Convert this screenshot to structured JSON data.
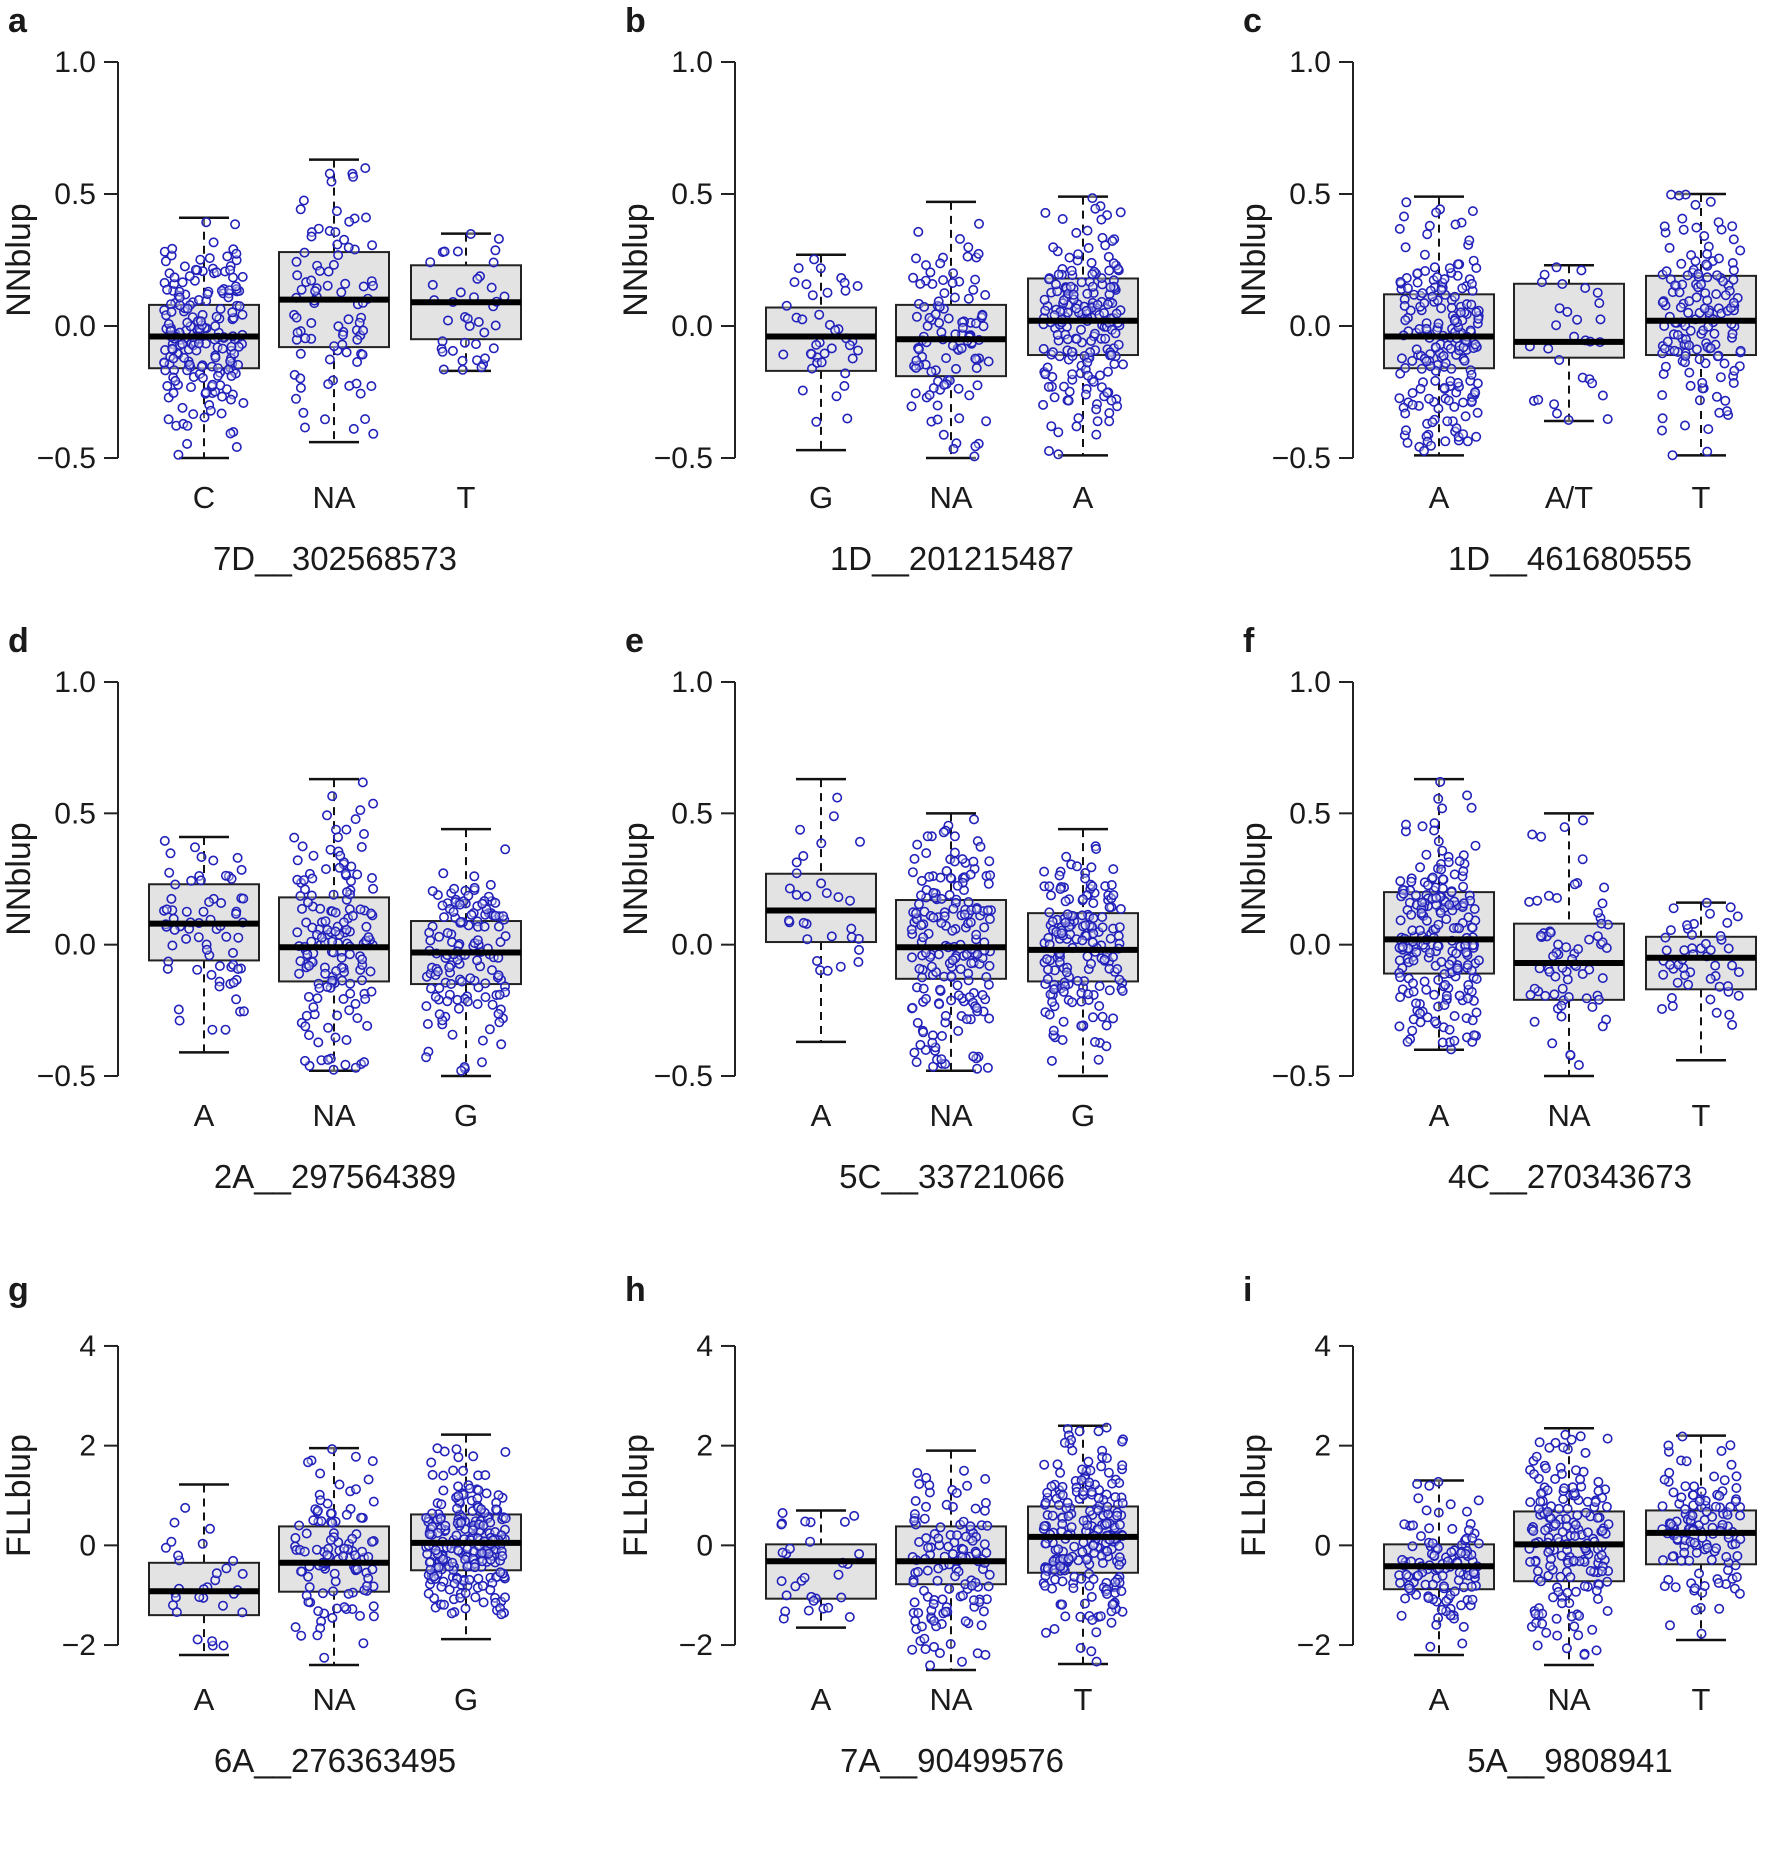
{
  "figure": {
    "title": ""
  },
  "chart_data": [
    {
      "panel": "a",
      "type": "box",
      "ylabel": "NNblup",
      "xlabel": "7D__302568573",
      "ylim": [
        -0.5,
        1.0
      ],
      "yticks": [
        -0.5,
        0.0,
        0.5,
        1.0
      ],
      "ytick_labels": [
        "−0.5",
        "0.0",
        "0.5",
        "1.0"
      ],
      "categories": [
        "C",
        "NA",
        "T"
      ],
      "boxes": [
        {
          "q1": -0.16,
          "median": -0.04,
          "q3": 0.08,
          "whisker_low": -0.5,
          "whisker_high": 0.41,
          "n": 200
        },
        {
          "q1": -0.08,
          "median": 0.1,
          "q3": 0.28,
          "whisker_low": -0.44,
          "whisker_high": 0.63,
          "n": 90
        },
        {
          "q1": -0.05,
          "median": 0.09,
          "q3": 0.23,
          "whisker_low": -0.17,
          "whisker_high": 0.35,
          "n": 40
        }
      ],
      "point_color": "#2222bb"
    },
    {
      "panel": "b",
      "type": "box",
      "ylabel": "NNblup",
      "xlabel": "1D__201215487",
      "ylim": [
        -0.5,
        1.0
      ],
      "yticks": [
        -0.5,
        0.0,
        0.5,
        1.0
      ],
      "ytick_labels": [
        "−0.5",
        "0.0",
        "0.5",
        "1.0"
      ],
      "categories": [
        "G",
        "NA",
        "A"
      ],
      "boxes": [
        {
          "q1": -0.17,
          "median": -0.04,
          "q3": 0.07,
          "whisker_low": -0.47,
          "whisker_high": 0.27,
          "n": 40
        },
        {
          "q1": -0.19,
          "median": -0.05,
          "q3": 0.08,
          "whisker_low": -0.5,
          "whisker_high": 0.47,
          "n": 110
        },
        {
          "q1": -0.11,
          "median": 0.02,
          "q3": 0.18,
          "whisker_low": -0.49,
          "whisker_high": 0.49,
          "n": 200
        }
      ],
      "point_color": "#2222bb"
    },
    {
      "panel": "c",
      "type": "box",
      "ylabel": "NNblup",
      "xlabel": "1D__461680555",
      "ylim": [
        -0.5,
        1.0
      ],
      "yticks": [
        -0.5,
        0.0,
        0.5,
        1.0
      ],
      "ytick_labels": [
        "−0.5",
        "0.0",
        "0.5",
        "1.0"
      ],
      "categories": [
        "A",
        "A/T",
        "T"
      ],
      "boxes": [
        {
          "q1": -0.16,
          "median": -0.04,
          "q3": 0.12,
          "whisker_low": -0.49,
          "whisker_high": 0.49,
          "n": 200
        },
        {
          "q1": -0.12,
          "median": -0.06,
          "q3": 0.16,
          "whisker_low": -0.36,
          "whisker_high": 0.23,
          "n": 30
        },
        {
          "q1": -0.11,
          "median": 0.02,
          "q3": 0.19,
          "whisker_low": -0.49,
          "whisker_high": 0.5,
          "n": 150
        }
      ],
      "point_color": "#2222bb"
    },
    {
      "panel": "d",
      "type": "box",
      "ylabel": "NNblup",
      "xlabel": "2A__297564389",
      "ylim": [
        -0.5,
        1.0
      ],
      "yticks": [
        -0.5,
        0.0,
        0.5,
        1.0
      ],
      "ytick_labels": [
        "−0.5",
        "0.0",
        "0.5",
        "1.0"
      ],
      "categories": [
        "A",
        "NA",
        "G"
      ],
      "boxes": [
        {
          "q1": -0.06,
          "median": 0.08,
          "q3": 0.23,
          "whisker_low": -0.41,
          "whisker_high": 0.41,
          "n": 70
        },
        {
          "q1": -0.14,
          "median": -0.01,
          "q3": 0.18,
          "whisker_low": -0.48,
          "whisker_high": 0.63,
          "n": 160
        },
        {
          "q1": -0.15,
          "median": -0.03,
          "q3": 0.09,
          "whisker_low": -0.5,
          "whisker_high": 0.44,
          "n": 140
        }
      ],
      "point_color": "#2222bb"
    },
    {
      "panel": "e",
      "type": "box",
      "ylabel": "NNblup",
      "xlabel": "5C__33721066",
      "ylim": [
        -0.5,
        1.0
      ],
      "yticks": [
        -0.5,
        0.0,
        0.5,
        1.0
      ],
      "ytick_labels": [
        "−0.5",
        "0.0",
        "0.5",
        "1.0"
      ],
      "categories": [
        "A",
        "NA",
        "G"
      ],
      "boxes": [
        {
          "q1": 0.01,
          "median": 0.13,
          "q3": 0.27,
          "whisker_low": -0.37,
          "whisker_high": 0.63,
          "n": 30
        },
        {
          "q1": -0.13,
          "median": -0.01,
          "q3": 0.17,
          "whisker_low": -0.48,
          "whisker_high": 0.5,
          "n": 190
        },
        {
          "q1": -0.14,
          "median": -0.02,
          "q3": 0.12,
          "whisker_low": -0.5,
          "whisker_high": 0.44,
          "n": 170
        }
      ],
      "point_color": "#2222bb"
    },
    {
      "panel": "f",
      "type": "box",
      "ylabel": "NNblup",
      "xlabel": "4C__270343673",
      "ylim": [
        -0.5,
        1.0
      ],
      "yticks": [
        -0.5,
        0.0,
        0.5,
        1.0
      ],
      "ytick_labels": [
        "−0.5",
        "0.0",
        "0.5",
        "1.0"
      ],
      "categories": [
        "A",
        "NA",
        "T"
      ],
      "boxes": [
        {
          "q1": -0.11,
          "median": 0.02,
          "q3": 0.2,
          "whisker_low": -0.4,
          "whisker_high": 0.63,
          "n": 220
        },
        {
          "q1": -0.21,
          "median": -0.07,
          "q3": 0.08,
          "whisker_low": -0.5,
          "whisker_high": 0.5,
          "n": 70
        },
        {
          "q1": -0.17,
          "median": -0.05,
          "q3": 0.03,
          "whisker_low": -0.44,
          "whisker_high": 0.16,
          "n": 50
        }
      ],
      "point_color": "#2222bb"
    },
    {
      "panel": "g",
      "type": "box",
      "ylabel": "FLLblup",
      "xlabel": "6A__276363495",
      "ylim": [
        -2.3,
        4.3
      ],
      "yticks": [
        -2,
        0,
        2,
        4
      ],
      "ytick_labels": [
        "−2",
        "0",
        "2",
        "4"
      ],
      "categories": [
        "A",
        "NA",
        "G"
      ],
      "boxes": [
        {
          "q1": -1.4,
          "median": -0.92,
          "q3": -0.35,
          "whisker_low": -2.2,
          "whisker_high": 1.22,
          "n": 30
        },
        {
          "q1": -0.93,
          "median": -0.35,
          "q3": 0.38,
          "whisker_low": -2.4,
          "whisker_high": 1.95,
          "n": 110
        },
        {
          "q1": -0.5,
          "median": 0.05,
          "q3": 0.62,
          "whisker_low": -1.88,
          "whisker_high": 2.22,
          "n": 240
        }
      ],
      "point_color": "#2222bb"
    },
    {
      "panel": "h",
      "type": "box",
      "ylabel": "FLLblup",
      "xlabel": "7A__90499576",
      "ylim": [
        -2.3,
        4.3
      ],
      "yticks": [
        -2,
        0,
        2,
        4
      ],
      "ytick_labels": [
        "−2",
        "0",
        "2",
        "4"
      ],
      "categories": [
        "A",
        "NA",
        "T"
      ],
      "boxes": [
        {
          "q1": -1.07,
          "median": -0.32,
          "q3": 0.02,
          "whisker_low": -1.65,
          "whisker_high": 0.7,
          "n": 30
        },
        {
          "q1": -0.78,
          "median": -0.32,
          "q3": 0.38,
          "whisker_low": -2.5,
          "whisker_high": 1.9,
          "n": 130
        },
        {
          "q1": -0.55,
          "median": 0.17,
          "q3": 0.78,
          "whisker_low": -2.38,
          "whisker_high": 2.4,
          "n": 230
        }
      ],
      "point_color": "#2222bb"
    },
    {
      "panel": "i",
      "type": "box",
      "ylabel": "FLLblup",
      "xlabel": "5A__9808941",
      "ylim": [
        -2.3,
        4.3
      ],
      "yticks": [
        -2,
        0,
        2,
        4
      ],
      "ytick_labels": [
        "−2",
        "0",
        "2",
        "4"
      ],
      "categories": [
        "A",
        "NA",
        "T"
      ],
      "boxes": [
        {
          "q1": -0.88,
          "median": -0.42,
          "q3": 0.02,
          "whisker_low": -2.2,
          "whisker_high": 1.3,
          "n": 120
        },
        {
          "q1": -0.72,
          "median": 0.02,
          "q3": 0.68,
          "whisker_low": -2.4,
          "whisker_high": 2.35,
          "n": 180
        },
        {
          "q1": -0.38,
          "median": 0.25,
          "q3": 0.7,
          "whisker_low": -1.9,
          "whisker_high": 2.2,
          "n": 130
        }
      ],
      "point_color": "#2222bb"
    }
  ]
}
